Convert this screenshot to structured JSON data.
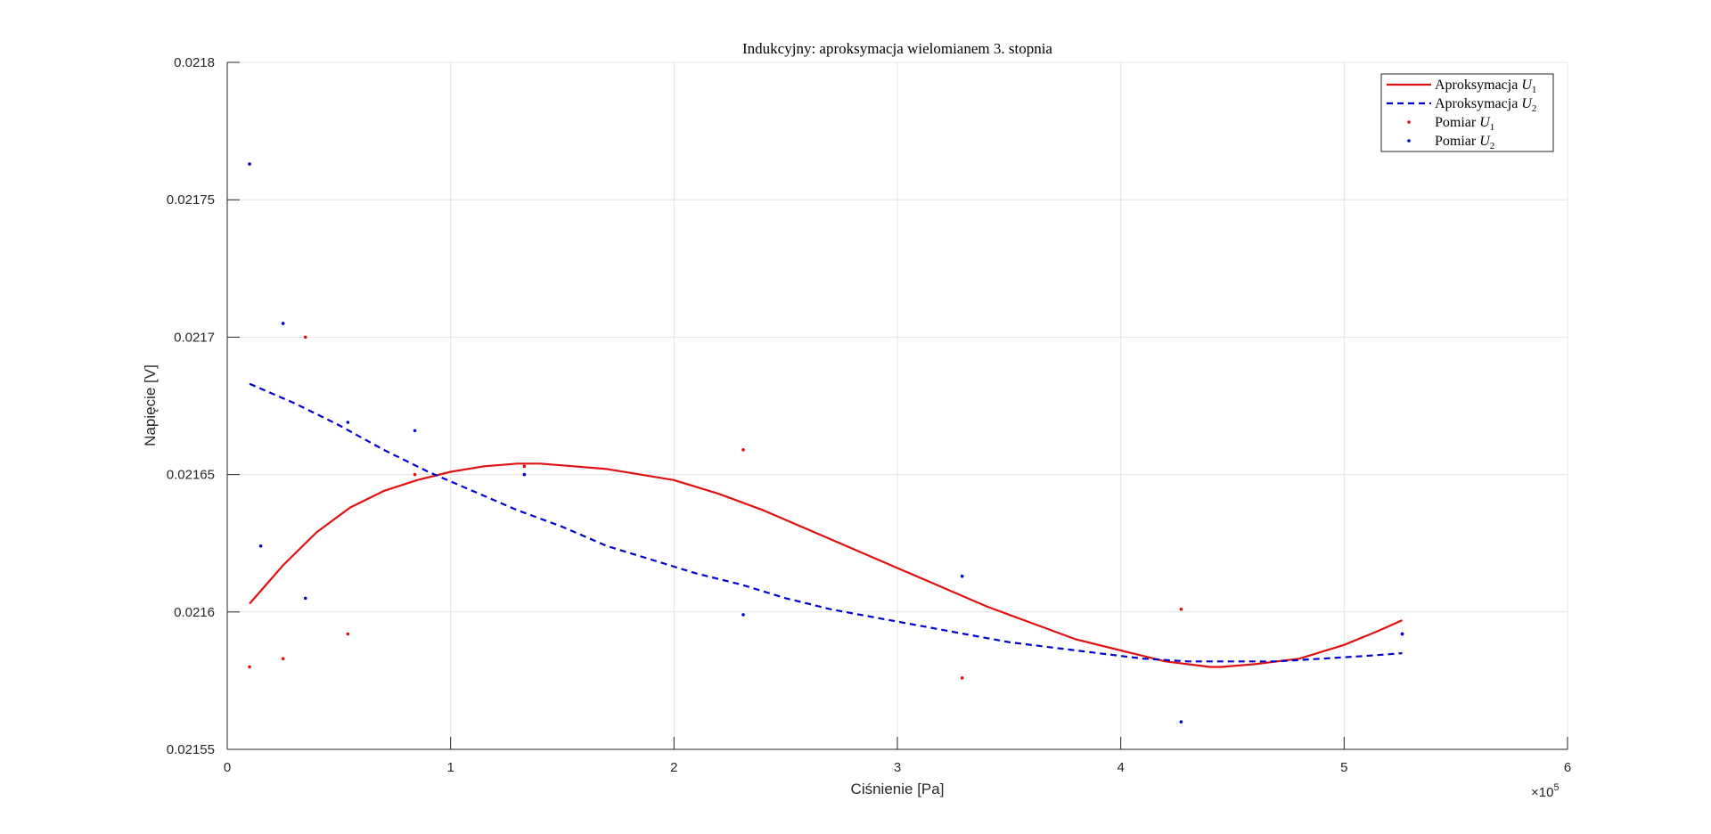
{
  "chart_data": {
    "type": "line",
    "title": "Indukcyjny: aproksymacja wielomianem 3. stopnia",
    "xlabel": "Ciśnienie [Pa]",
    "ylabel": "Napięcie [V]",
    "x_exponent_label": "×10",
    "x_exponent_power": "5",
    "xlim": [
      0,
      600000
    ],
    "ylim": [
      0.02155,
      0.0218
    ],
    "xticks": [
      0,
      100000,
      200000,
      300000,
      400000,
      500000,
      600000
    ],
    "xtick_labels": [
      "0",
      "1",
      "2",
      "3",
      "4",
      "5",
      "6"
    ],
    "yticks": [
      0.02155,
      0.0216,
      0.02165,
      0.0217,
      0.02175,
      0.0218
    ],
    "ytick_labels": [
      "0.02155",
      "0.0216",
      "0.02165",
      "0.0217",
      "0.02175",
      "0.0218"
    ],
    "grid": true,
    "legend_position": "top-right",
    "legend": [
      {
        "base": "Aproksymacja ",
        "var": "U",
        "sub": "1",
        "kind": "solid-line",
        "color": "#dd1111"
      },
      {
        "base": "Aproksymacja ",
        "var": "U",
        "sub": "2",
        "kind": "dashed-line",
        "color": "#0000cc"
      },
      {
        "base": "Pomiar ",
        "var": "U",
        "sub": "1",
        "kind": "dot",
        "color": "#dd1111"
      },
      {
        "base": "Pomiar ",
        "var": "U",
        "sub": "2",
        "kind": "dot",
        "color": "#0000cc"
      }
    ],
    "series": [
      {
        "name": "Aproksymacja U1",
        "kind": "line",
        "style": "solid",
        "color": "#dd1111",
        "x": [
          10000,
          25000,
          40000,
          55000,
          70000,
          85000,
          100000,
          115000,
          130000,
          140000,
          155000,
          170000,
          185000,
          200000,
          220000,
          240000,
          260000,
          280000,
          300000,
          320000,
          340000,
          360000,
          380000,
          400000,
          420000,
          440000,
          445000,
          460000,
          480000,
          500000,
          515000,
          526000
        ],
        "y": [
          0.021603,
          0.021617,
          0.021629,
          0.021638,
          0.021644,
          0.021648,
          0.021651,
          0.021653,
          0.021654,
          0.021654,
          0.021653,
          0.021652,
          0.02165,
          0.021648,
          0.021643,
          0.021637,
          0.02163,
          0.021623,
          0.021616,
          0.021609,
          0.021602,
          0.021596,
          0.02159,
          0.021586,
          0.021582,
          0.02158,
          0.02158,
          0.021581,
          0.021583,
          0.021588,
          0.021593,
          0.021597
        ]
      },
      {
        "name": "Aproksymacja U2",
        "kind": "line",
        "style": "dashed",
        "color": "#0000cc",
        "x": [
          10000,
          30000,
          50000,
          70000,
          90000,
          110000,
          130000,
          150000,
          170000,
          190000,
          210000,
          230000,
          250000,
          270000,
          290000,
          310000,
          330000,
          350000,
          370000,
          390000,
          410000,
          430000,
          450000,
          470000,
          490000,
          510000,
          526000
        ],
        "y": [
          0.021683,
          0.021676,
          0.021668,
          0.021659,
          0.021651,
          0.021644,
          0.021637,
          0.021631,
          0.021624,
          0.021619,
          0.021614,
          0.02161,
          0.021605,
          0.021601,
          0.021598,
          0.021595,
          0.021592,
          0.021589,
          0.021587,
          0.021585,
          0.021583,
          0.021582,
          0.021582,
          0.021582,
          0.021583,
          0.021584,
          0.021585
        ]
      },
      {
        "name": "Pomiar U1",
        "kind": "scatter",
        "color": "#dd1111",
        "x": [
          10000,
          25000,
          35000,
          54000,
          84000,
          133000,
          231000,
          329000,
          427000,
          526000
        ],
        "y": [
          0.02158,
          0.021583,
          0.0217,
          0.021592,
          0.02165,
          0.021653,
          0.021659,
          0.021576,
          0.021601,
          0.021592
        ]
      },
      {
        "name": "Pomiar U2",
        "kind": "scatter",
        "color": "#0000cc",
        "x": [
          10000,
          15000,
          25000,
          35000,
          54000,
          84000,
          133000,
          231000,
          329000,
          427000,
          526000
        ],
        "y": [
          0.021763,
          0.021624,
          0.021705,
          0.021605,
          0.021669,
          0.021666,
          0.02165,
          0.021599,
          0.021613,
          0.02156,
          0.021592
        ]
      }
    ]
  }
}
